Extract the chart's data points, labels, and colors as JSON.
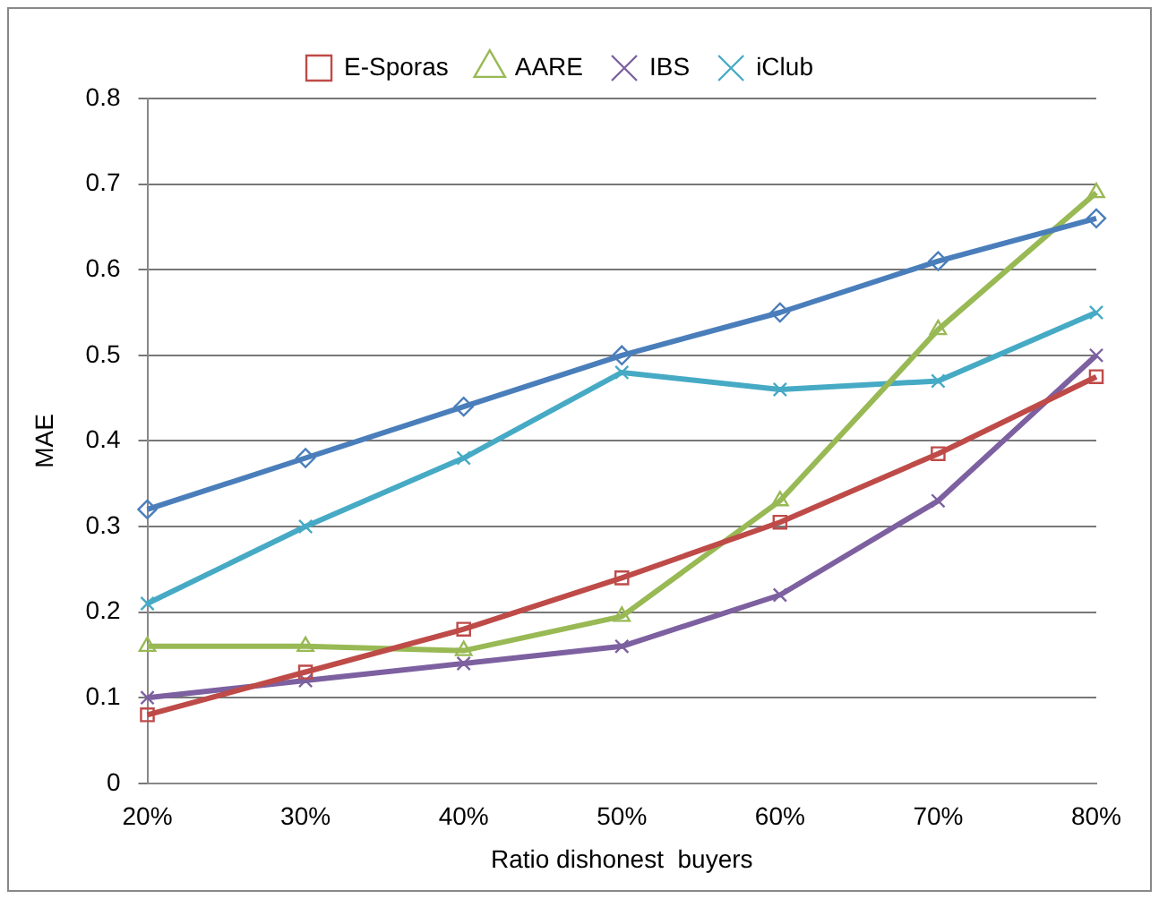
{
  "chart_data": {
    "type": "line",
    "xlabel": "Ratio dishonest  buyers",
    "ylabel": "MAE",
    "categories": [
      "20%",
      "30%",
      "40%",
      "50%",
      "60%",
      "70%",
      "80%"
    ],
    "series": [
      {
        "color": "#4a7ebb",
        "marker": "diamond",
        "values": [
          0.32,
          0.38,
          0.44,
          0.5,
          0.55,
          0.61,
          0.66
        ]
      },
      {
        "name": "E-Sporas",
        "color": "#be4b48",
        "marker": "square",
        "values": [
          0.08,
          0.13,
          0.18,
          0.24,
          0.305,
          0.385,
          0.475
        ]
      },
      {
        "name": "AARE",
        "color": "#98b954",
        "marker": "triangle",
        "values": [
          0.16,
          0.16,
          0.155,
          0.195,
          0.33,
          0.53,
          0.69
        ]
      },
      {
        "name": "IBS",
        "color": "#7d60a0",
        "marker": "cross",
        "values": [
          0.1,
          0.12,
          0.14,
          0.16,
          0.22,
          0.33,
          0.5
        ]
      },
      {
        "name": "iClub",
        "color": "#46aac5",
        "marker": "cross",
        "values": [
          0.21,
          0.3,
          0.38,
          0.48,
          0.46,
          0.47,
          0.55
        ]
      }
    ],
    "ylim": [
      0,
      0.8
    ],
    "yticks": [
      0,
      0.1,
      0.2,
      0.3,
      0.4,
      0.5,
      0.6,
      0.7,
      0.8
    ],
    "grid": "y",
    "legend": "top"
  }
}
